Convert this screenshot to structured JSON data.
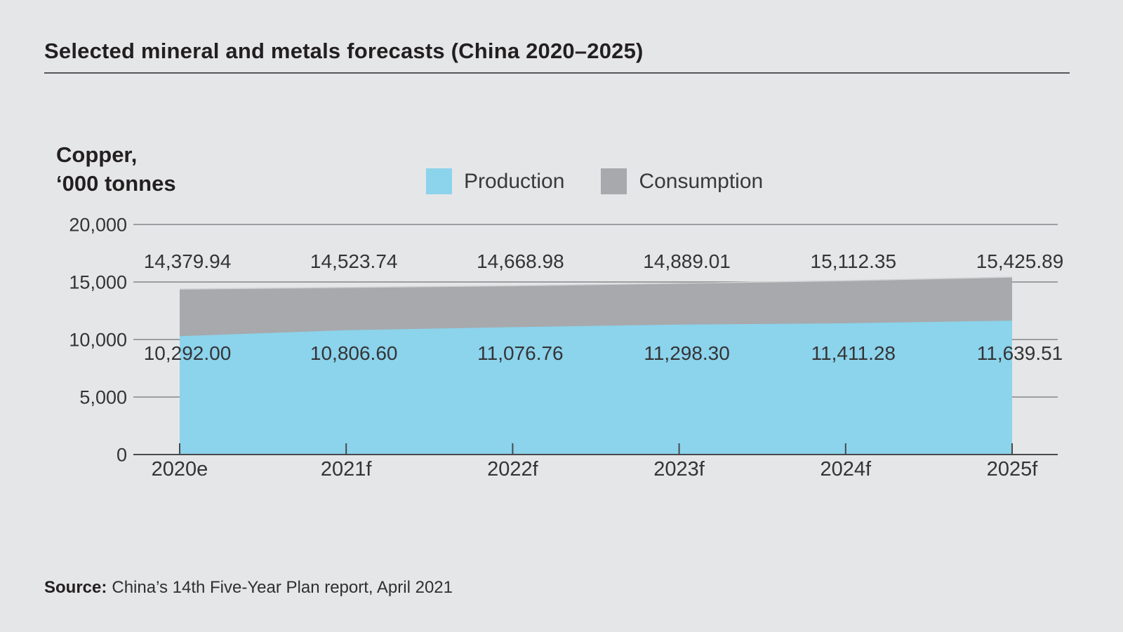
{
  "header": {
    "title": "Selected mineral and metals forecasts (China 2020–2025)"
  },
  "colors": {
    "background": "#e5e6e7",
    "text": "#343436",
    "grid": "#737477",
    "axis": "#48494b",
    "production": "#8cd3ec",
    "consumption": "#a7a9ac"
  },
  "chart_data": {
    "type": "area",
    "title": "Selected mineral and metals forecasts (China 2020–2025)",
    "axis_title_line1": "Copper,",
    "axis_title_line2": "‘000 tonnes",
    "categories": [
      "2020e",
      "2021f",
      "2022f",
      "2023f",
      "2024f",
      "2025f"
    ],
    "series": [
      {
        "name": "Production",
        "color": "#8cd3ec",
        "values": [
          10292.0,
          10806.6,
          11076.76,
          11298.3,
          11411.28,
          11639.51
        ],
        "labels": [
          "10,292.00",
          "10,806.60",
          "11,076.76",
          "11,298.30",
          "11,411.28",
          "11,639.51"
        ]
      },
      {
        "name": "Consumption",
        "color": "#a7a9ac",
        "values": [
          14379.94,
          14523.74,
          14668.98,
          14889.01,
          15112.35,
          15425.89
        ],
        "labels": [
          "14,379.94",
          "14,523.74",
          "14,668.98",
          "14,889.01",
          "15,112.35",
          "15,425.89"
        ]
      }
    ],
    "ylim": [
      0,
      20000
    ],
    "yticks": {
      "values": [
        0,
        5000,
        10000,
        15000,
        20000
      ],
      "labels": [
        "0",
        "5,000",
        "10,000",
        "15,000",
        "20,000"
      ]
    },
    "grid": true,
    "legend_position": "top"
  },
  "source": {
    "prefix": "Source:",
    "text": "China’s 14th Five-Year Plan report, April 2021"
  }
}
